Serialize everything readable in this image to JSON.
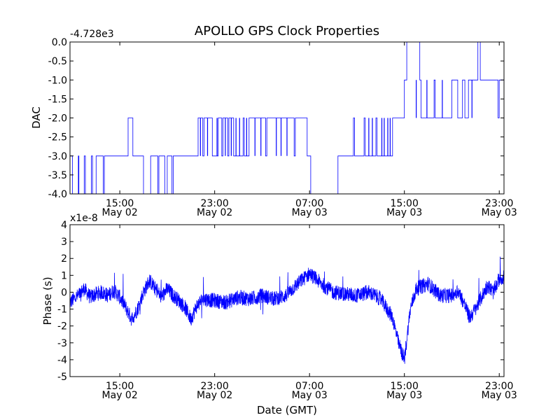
{
  "colors": {
    "line": "#0000ff",
    "axes": "#000000",
    "background": "#ffffff"
  },
  "chart_data": [
    {
      "type": "line",
      "title": "APOLLO GPS Clock Properties",
      "offset_label": "-4.728e3",
      "ylabel": "DAC",
      "xlabel": "",
      "ylim": [
        -4.0,
        0.0
      ],
      "yticks": [
        -4.0,
        -3.5,
        -3.0,
        -2.5,
        -2.0,
        -1.5,
        -1.0,
        -0.5,
        0.0
      ],
      "ytick_labels": [
        "-4.0",
        "-3.5",
        "-3.0",
        "-2.5",
        "-2.0",
        "-1.5",
        "-1.0",
        "-0.5",
        "0.0"
      ],
      "xlim_hours": [
        10.8,
        47.4
      ],
      "xticks_hours": [
        15,
        23,
        31,
        39,
        47
      ],
      "xtick_labels": [
        [
          "15:00",
          "May 02"
        ],
        [
          "23:00",
          "May 02"
        ],
        [
          "07:00",
          "May 03"
        ],
        [
          "15:00",
          "May 03"
        ],
        [
          "23:00",
          "May 03"
        ]
      ],
      "series": [
        {
          "name": "DAC",
          "x_hours": [
            10.8,
            11.0,
            11.0,
            11.5,
            11.5,
            11.55,
            11.55,
            12.0,
            12.0,
            12.1,
            12.1,
            12.6,
            12.6,
            12.7,
            12.7,
            13.0,
            13.0,
            13.6,
            13.6,
            13.7,
            13.7,
            14.0,
            14.0,
            15.7,
            15.7,
            16.1,
            16.1,
            17.0,
            17.0,
            17.6,
            17.6,
            18.2,
            18.2,
            18.3,
            18.3,
            18.8,
            18.8,
            19.0,
            19.0,
            19.4,
            19.4,
            19.5,
            19.5,
            19.6,
            19.6,
            21.6,
            21.6,
            22.0,
            22.0,
            22.1,
            22.1,
            22.8,
            22.8,
            23.3,
            23.3,
            23.6,
            23.6,
            23.7,
            23.7,
            24.1,
            24.1,
            24.2,
            24.2,
            24.6,
            24.6,
            25.4,
            25.4,
            25.5,
            25.5,
            25.9,
            25.9,
            27.3,
            27.3,
            27.4,
            27.4,
            29.7,
            29.7,
            29.8,
            29.8,
            30.8,
            30.8,
            31.1,
            31.1,
            33.4,
            33.4,
            33.7,
            33.7,
            34.7,
            34.7,
            34.8,
            34.8,
            35.6,
            35.6,
            35.7,
            35.7,
            36.6,
            36.6,
            36.7,
            36.7,
            38.0,
            38.0,
            38.4,
            38.4,
            39.0,
            39.0,
            39.2,
            39.2,
            40.3,
            40.3,
            40.4,
            40.4,
            41.5,
            41.5,
            41.6,
            41.6,
            42.6,
            42.6,
            43.0,
            43.0,
            43.5,
            43.5,
            43.9,
            43.9,
            44.1,
            44.1,
            44.4,
            44.4,
            45.2,
            45.2,
            45.4,
            45.4,
            46.9,
            46.9,
            47.0,
            47.0,
            47.4
          ],
          "y": [
            -3.0,
            -3.0,
            -4.0,
            -4.0,
            -3.0,
            -3.0,
            -4.0,
            -4.0,
            -3.0,
            -3.0,
            -4.0,
            -4.0,
            -3.0,
            -3.0,
            -4.0,
            -4.0,
            -3.0,
            -3.0,
            -4.0,
            -4.0,
            -3.0,
            -3.0,
            -3.0,
            -3.0,
            -2.0,
            -2.0,
            -3.0,
            -3.0,
            -4.0,
            -4.0,
            -3.0,
            -3.0,
            -4.0,
            -4.0,
            -3.0,
            -3.0,
            -4.0,
            -4.0,
            -3.0,
            -3.0,
            -4.0,
            -4.0,
            -3.0,
            -3.0,
            -3.0,
            -3.0,
            -2.0,
            -2.0,
            -3.0,
            -3.0,
            -2.0,
            -2.0,
            -3.0,
            -3.0,
            -2.0,
            -2.0,
            -3.0,
            -3.0,
            -2.0,
            -2.0,
            -3.0,
            -3.0,
            -2.0,
            -2.0,
            -3.0,
            -3.0,
            -2.0,
            -2.0,
            -3.0,
            -3.0,
            -2.0,
            -2.0,
            -3.0,
            -3.0,
            -2.0,
            -2.0,
            -3.0,
            -3.0,
            -2.0,
            -2.0,
            -3.0,
            -3.0,
            -4.0,
            -4.0,
            -3.0,
            -3.0,
            -3.0,
            -3.0,
            -2.0,
            -2.0,
            -3.0,
            -3.0,
            -2.0,
            -2.0,
            -3.0,
            -3.0,
            -2.0,
            -2.0,
            -3.0,
            -3.0,
            -2.0,
            -2.0,
            -2.0,
            -2.0,
            -1.0,
            -1.0,
            0.0,
            0.0,
            -1.0,
            -1.0,
            -2.0,
            -2.0,
            -1.0,
            -1.0,
            -2.0,
            -2.0,
            -2.0,
            -2.0,
            -1.0,
            -1.0,
            -2.0,
            -2.0,
            -1.0,
            -1.0,
            -2.0,
            -2.0,
            -1.0,
            -1.0,
            0.0,
            0.0,
            -1.0,
            -1.0,
            -2.0,
            -2.0,
            -1.0,
            -1.0
          ]
        }
      ],
      "spikes": [
        {
          "x_hours": 21.8,
          "y_from": -3.0,
          "y_to": -2.0
        },
        {
          "x_hours": 22.4,
          "y_from": -3.0,
          "y_to": -2.0
        },
        {
          "x_hours": 23.2,
          "y_from": -3.0,
          "y_to": -2.0
        },
        {
          "x_hours": 23.9,
          "y_from": -3.0,
          "y_to": -2.0
        },
        {
          "x_hours": 24.4,
          "y_from": -3.0,
          "y_to": -2.0
        },
        {
          "x_hours": 24.8,
          "y_from": -3.0,
          "y_to": -2.0
        },
        {
          "x_hours": 25.1,
          "y_from": -3.0,
          "y_to": -2.0
        },
        {
          "x_hours": 25.7,
          "y_from": -3.0,
          "y_to": -2.0
        },
        {
          "x_hours": 26.4,
          "y_from": -3.0,
          "y_to": -2.0
        },
        {
          "x_hours": 26.9,
          "y_from": -3.0,
          "y_to": -2.0
        },
        {
          "x_hours": 28.2,
          "y_from": -3.0,
          "y_to": -2.0
        },
        {
          "x_hours": 28.6,
          "y_from": -3.0,
          "y_to": -2.0
        },
        {
          "x_hours": 29.1,
          "y_from": -3.0,
          "y_to": -2.0
        },
        {
          "x_hours": 36.0,
          "y_from": -3.0,
          "y_to": -2.0
        },
        {
          "x_hours": 36.3,
          "y_from": -3.0,
          "y_to": -2.0
        },
        {
          "x_hours": 37.1,
          "y_from": -3.0,
          "y_to": -2.0
        },
        {
          "x_hours": 37.3,
          "y_from": -3.0,
          "y_to": -2.0
        },
        {
          "x_hours": 37.6,
          "y_from": -3.0,
          "y_to": -2.0
        },
        {
          "x_hours": 37.8,
          "y_from": -3.0,
          "y_to": -2.0
        },
        {
          "x_hours": 40.0,
          "y_from": -2.0,
          "y_to": -1.0
        },
        {
          "x_hours": 40.9,
          "y_from": -2.0,
          "y_to": -1.0
        },
        {
          "x_hours": 42.2,
          "y_from": -2.0,
          "y_to": -1.0
        },
        {
          "x_hours": 44.7,
          "y_from": -1.0,
          "y_to": -2.0
        }
      ]
    },
    {
      "type": "line",
      "title": "",
      "offset_label": "x1e-8",
      "ylabel": "Phase (s)",
      "xlabel": "Date (GMT)",
      "ylim": [
        -5,
        4
      ],
      "yticks": [
        -5,
        -4,
        -3,
        -2,
        -1,
        0,
        1,
        2,
        3,
        4
      ],
      "ytick_labels": [
        "-5",
        "-4",
        "-3",
        "-2",
        "-1",
        "0",
        "1",
        "2",
        "3",
        "4"
      ],
      "xlim_hours": [
        10.8,
        47.4
      ],
      "xticks_hours": [
        15,
        23,
        31,
        39,
        47
      ],
      "xtick_labels": [
        [
          "15:00",
          "May 02"
        ],
        [
          "23:00",
          "May 02"
        ],
        [
          "07:00",
          "May 03"
        ],
        [
          "15:00",
          "May 03"
        ],
        [
          "23:00",
          "May 03"
        ]
      ],
      "series": [
        {
          "name": "Phase",
          "baseline": {
            "x_hours": [
              10.8,
              11.5,
              12.0,
              12.5,
              13.0,
              13.5,
              14.0,
              14.5,
              15.0,
              15.5,
              16.0,
              16.5,
              17.0,
              17.5,
              18.0,
              18.5,
              19.0,
              19.5,
              20.0,
              20.5,
              21.0,
              21.5,
              22.0,
              23.0,
              24.0,
              25.0,
              26.0,
              27.0,
              28.0,
              29.0,
              30.0,
              31.0,
              32.0,
              33.0,
              34.0,
              35.0,
              36.0,
              37.0,
              38.0,
              38.5,
              39.0,
              39.5,
              40.0,
              41.0,
              42.0,
              43.0,
              43.5,
              44.0,
              44.5,
              45.0,
              45.5,
              46.0,
              46.5,
              47.0,
              47.4
            ],
            "y": [
              -0.6,
              -0.2,
              0.2,
              -0.3,
              -0.1,
              0.0,
              -0.2,
              0.1,
              -0.3,
              -0.9,
              -1.6,
              -1.0,
              0.0,
              0.7,
              0.2,
              -0.3,
              0.2,
              -0.2,
              -0.5,
              -0.9,
              -1.6,
              -0.8,
              -0.4,
              -0.5,
              -0.6,
              -0.3,
              -0.4,
              -0.2,
              -0.4,
              -0.2,
              0.5,
              1.1,
              0.5,
              0.0,
              -0.1,
              -0.2,
              0.0,
              -0.4,
              -1.5,
              -3.0,
              -4.0,
              -1.0,
              0.2,
              0.5,
              -0.2,
              -0.2,
              0.1,
              -0.6,
              -1.5,
              -1.0,
              -0.3,
              0.4,
              0.0,
              0.8,
              0.9
            ]
          },
          "noise_amplitude": 0.45
        }
      ]
    }
  ]
}
